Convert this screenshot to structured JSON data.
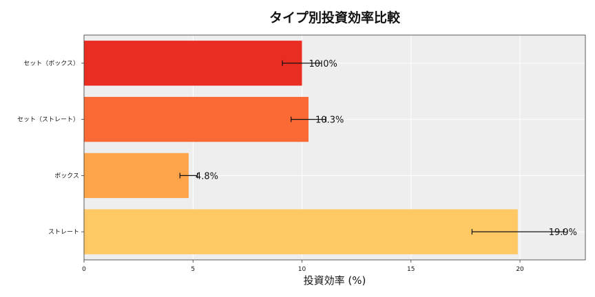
{
  "chart_data": {
    "type": "bar",
    "orientation": "horizontal",
    "title": "タイプ別投資効率比較",
    "xlabel": "投資効率 (%)",
    "ylabel": "",
    "xlim": [
      0,
      23
    ],
    "xticks": [
      0,
      5,
      10,
      15,
      20
    ],
    "grid": true,
    "categories": [
      "セット（ボックス）",
      "セット（ストレート）",
      "ボックス",
      "ストレート"
    ],
    "values": [
      10.0,
      10.3,
      4.8,
      19.9
    ],
    "error": [
      [
        9.1,
        10.9
      ],
      [
        9.5,
        11.1
      ],
      [
        4.4,
        5.2
      ],
      [
        17.8,
        22.0
      ]
    ],
    "value_labels": [
      "10.0%",
      "10.3%",
      "4.8%",
      "19.9%"
    ],
    "colors": [
      "#e92d22",
      "#fb6a34",
      "#fda44b",
      "#fec965"
    ],
    "background": "#eeeeee"
  }
}
